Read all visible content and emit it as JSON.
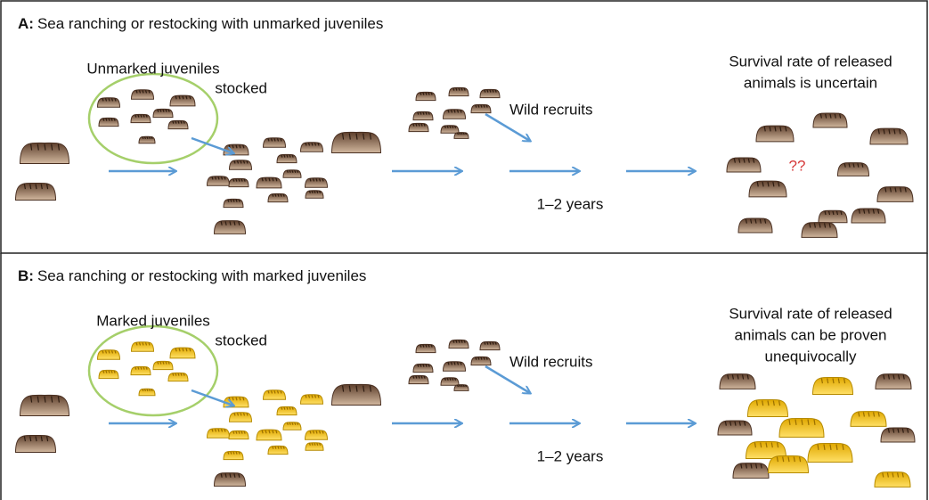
{
  "panels": [
    {
      "label": "A:",
      "title": "Sea ranching or restocking with unmarked juveniles",
      "stocked_label": [
        "Unmarked juveniles",
        "stocked"
      ],
      "wild_label": "Wild recruits",
      "time_label": "1–2 years",
      "outcome_label": [
        "Survival rate of released",
        "animals is uncertain"
      ],
      "uncertain_mark": "??"
    },
    {
      "label": "B:",
      "title": "Sea ranching or restocking with marked juveniles",
      "stocked_label": [
        "Marked juveniles",
        "stocked"
      ],
      "wild_label": "Wild recruits",
      "time_label": "1–2 years",
      "outcome_label": [
        "Survival rate of released",
        "animals can be proven",
        "unequivocally"
      ]
    }
  ]
}
